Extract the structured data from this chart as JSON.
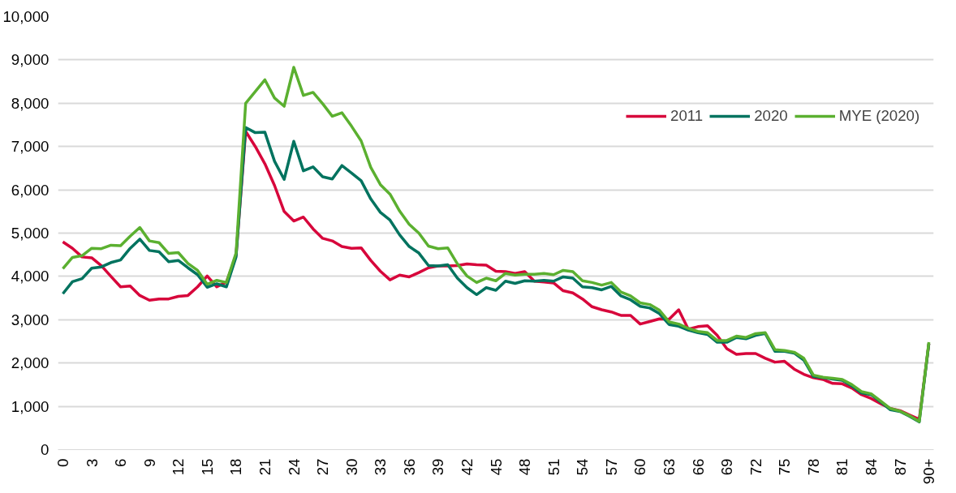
{
  "chart_data": {
    "type": "line",
    "categories": [
      "0",
      null,
      null,
      "3",
      null,
      null,
      "6",
      null,
      null,
      "9",
      null,
      null,
      "12",
      null,
      null,
      "15",
      null,
      null,
      "18",
      null,
      null,
      "21",
      null,
      null,
      "24",
      null,
      null,
      "27",
      null,
      null,
      "30",
      null,
      null,
      "33",
      null,
      null,
      "36",
      null,
      null,
      "39",
      null,
      null,
      "42",
      null,
      null,
      "45",
      null,
      null,
      "48",
      null,
      null,
      "51",
      null,
      null,
      "54",
      null,
      null,
      "57",
      null,
      null,
      "60",
      null,
      null,
      "63",
      null,
      null,
      "66",
      null,
      null,
      "69",
      null,
      null,
      "72",
      null,
      null,
      "75",
      null,
      null,
      "78",
      null,
      null,
      "81",
      null,
      null,
      "84",
      null,
      null,
      "87",
      null,
      null,
      "90+"
    ],
    "series": [
      {
        "name": "2011",
        "color": "#d7063b",
        "values": [
          4800,
          4650,
          4450,
          4430,
          4250,
          4000,
          3760,
          3780,
          3560,
          3450,
          3480,
          3480,
          3540,
          3560,
          3760,
          4010,
          3760,
          3870,
          4480,
          7350,
          7000,
          6600,
          6100,
          5500,
          5280,
          5370,
          5100,
          4880,
          4820,
          4690,
          4650,
          4660,
          4370,
          4120,
          3920,
          4030,
          3990,
          4090,
          4200,
          4240,
          4240,
          4250,
          4290,
          4270,
          4260,
          4120,
          4110,
          4070,
          4110,
          3890,
          3870,
          3850,
          3670,
          3620,
          3480,
          3300,
          3230,
          3180,
          3100,
          3100,
          2900,
          2960,
          3020,
          3010,
          3230,
          2780,
          2840,
          2860,
          2640,
          2330,
          2200,
          2220,
          2220,
          2110,
          2020,
          2040,
          1860,
          1740,
          1660,
          1620,
          1530,
          1520,
          1420,
          1270,
          1180,
          1060,
          950,
          900,
          800,
          700,
          2450
        ]
      },
      {
        "name": "2020",
        "color": "#00735f",
        "values": [
          3600,
          3880,
          3950,
          4190,
          4220,
          4320,
          4380,
          4650,
          4860,
          4600,
          4570,
          4340,
          4370,
          4200,
          4040,
          3750,
          3830,
          3760,
          4450,
          7440,
          7320,
          7330,
          6660,
          6240,
          7120,
          6440,
          6530,
          6300,
          6250,
          6560,
          6390,
          6210,
          5790,
          5480,
          5300,
          4960,
          4690,
          4540,
          4250,
          4240,
          4270,
          3960,
          3740,
          3580,
          3740,
          3680,
          3890,
          3840,
          3900,
          3890,
          3910,
          3890,
          3990,
          3960,
          3760,
          3740,
          3690,
          3770,
          3550,
          3460,
          3310,
          3270,
          3140,
          2890,
          2850,
          2760,
          2700,
          2660,
          2480,
          2480,
          2590,
          2560,
          2640,
          2680,
          2270,
          2270,
          2230,
          2070,
          1690,
          1660,
          1630,
          1600,
          1470,
          1310,
          1270,
          1100,
          920,
          880,
          770,
          640,
          2450
        ]
      },
      {
        "name": "MYE (2020)",
        "color": "#5bb030",
        "values": [
          4180,
          4440,
          4480,
          4650,
          4640,
          4720,
          4710,
          4930,
          5130,
          4820,
          4780,
          4530,
          4550,
          4300,
          4140,
          3820,
          3910,
          3860,
          4540,
          8000,
          8270,
          8540,
          8120,
          7930,
          8830,
          8180,
          8250,
          7990,
          7700,
          7780,
          7470,
          7130,
          6520,
          6120,
          5900,
          5510,
          5200,
          5000,
          4700,
          4640,
          4660,
          4290,
          4010,
          3860,
          3960,
          3900,
          4070,
          4030,
          4050,
          4050,
          4070,
          4040,
          4140,
          4110,
          3900,
          3860,
          3800,
          3860,
          3640,
          3550,
          3390,
          3350,
          3220,
          2950,
          2900,
          2800,
          2730,
          2700,
          2520,
          2520,
          2620,
          2590,
          2680,
          2700,
          2310,
          2290,
          2250,
          2110,
          1720,
          1670,
          1650,
          1620,
          1500,
          1340,
          1290,
          1120,
          950,
          890,
          780,
          650,
          2480
        ]
      }
    ],
    "ylim": [
      0,
      10000
    ],
    "yticks": [
      {
        "value": 0,
        "label": "0"
      },
      {
        "value": 1000,
        "label": "1,000"
      },
      {
        "value": 2000,
        "label": "2,000"
      },
      {
        "value": 3000,
        "label": "3,000"
      },
      {
        "value": 4000,
        "label": "4,000"
      },
      {
        "value": 5000,
        "label": "5,000"
      },
      {
        "value": 6000,
        "label": "6,000"
      },
      {
        "value": 7000,
        "label": "7,000"
      },
      {
        "value": 8000,
        "label": "8,000"
      },
      {
        "value": 9000,
        "label": "9,000"
      },
      {
        "value": 10000,
        "label": "10,000"
      }
    ],
    "grid": "y",
    "legend": "top right",
    "marker": "none",
    "line_style": "solid"
  }
}
